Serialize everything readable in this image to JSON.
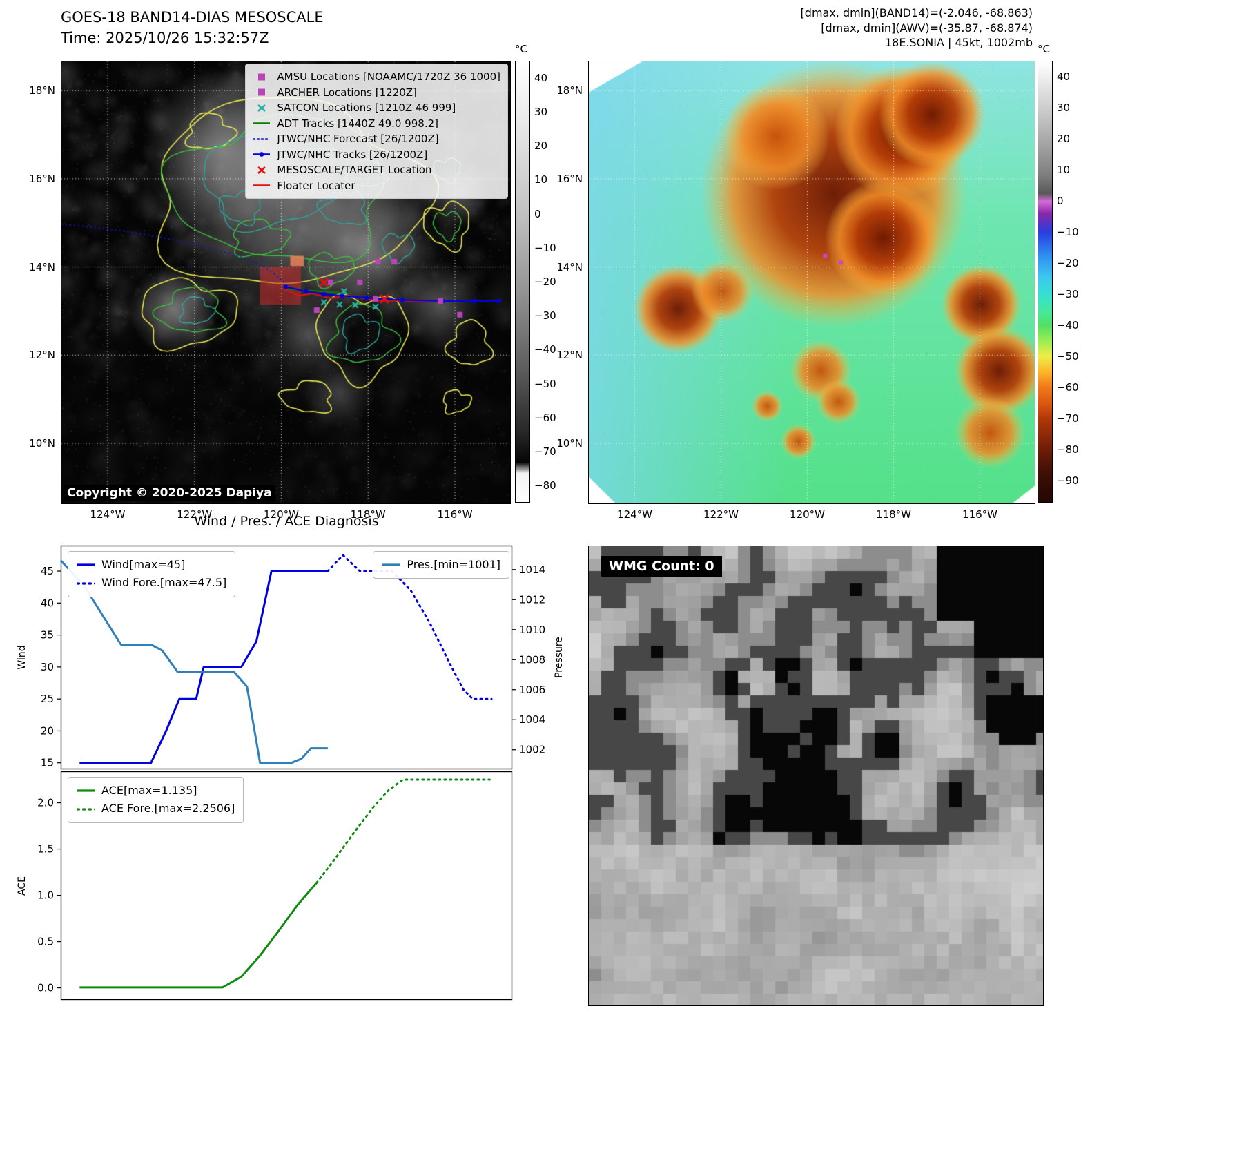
{
  "band14": {
    "title1": "GOES-18 BAND14-DIAS MESOSCALE",
    "title2": "Time: 2025/10/26 15:32:57Z",
    "copyright": "Copyright © 2020-2025 Dapiya",
    "unit": "°C",
    "x_ticks": [
      "124°W",
      "122°W",
      "120°W",
      "118°W",
      "116°W"
    ],
    "y_ticks": [
      "18°N",
      "16°N",
      "14°N",
      "12°N",
      "10°N"
    ],
    "colorbar_ticks": [
      40,
      30,
      20,
      10,
      0,
      -10,
      -20,
      -30,
      -40,
      -50,
      -60,
      -70,
      -80
    ],
    "legend": [
      {
        "label": "AMSU Locations [NOAAMC/1720Z 36 1000]",
        "marker": "square",
        "color": "#bb44bb"
      },
      {
        "label": "ARCHER Locations [1220Z]",
        "marker": "square",
        "color": "#bb44bb"
      },
      {
        "label": "SATCON Locations [1210Z 46 999]",
        "marker": "x",
        "color": "#26b3a7"
      },
      {
        "label": "ADT Tracks [1440Z 49.0 998.2]",
        "marker": "line",
        "color": "#0a7d0a"
      },
      {
        "label": "JTWC/NHC Forecast [26/1200Z]",
        "marker": "dotted",
        "color": "#1515c8"
      },
      {
        "label": "JTWC/NHC Tracks [26/1200Z]",
        "marker": "linedot",
        "color": "#0000e0"
      },
      {
        "label": "MESOSCALE/TARGET Location",
        "marker": "x",
        "color": "#e51010"
      },
      {
        "label": "Floater Locater",
        "marker": "line",
        "color": "#e51010"
      }
    ]
  },
  "awv": {
    "hdr1": "[dmax, dmin](BAND14)=(-2.046, -68.863)",
    "hdr2": "[dmax, dmin](AWV)=(-35.87, -68.874)",
    "hdr3": "18E.SONIA | 45kt, 1002mb",
    "unit": "°C",
    "x_ticks": [
      "124°W",
      "122°W",
      "120°W",
      "118°W",
      "116°W"
    ],
    "y_ticks": [
      "18°N",
      "16°N",
      "14°N",
      "12°N",
      "10°N"
    ],
    "colorbar_ticks": [
      40,
      30,
      20,
      10,
      0,
      -10,
      -20,
      -30,
      -40,
      -50,
      -60,
      -70,
      -80,
      -90
    ]
  },
  "wmg": {
    "label": "WMG Count: 0"
  },
  "chart_data": [
    {
      "type": "line",
      "title": "Wind / Pres. / ACE Diagnosis",
      "xlabel": "",
      "ylabel_left": "Wind",
      "ylabel_right": "Pressure",
      "xlim": [
        0,
        24
      ],
      "ylim_left": [
        14,
        49
      ],
      "ylim_right": [
        1000.7,
        1015.6
      ],
      "yticks_left": [
        15,
        20,
        25,
        30,
        35,
        40,
        45
      ],
      "yticks_right": [
        1002,
        1004,
        1006,
        1008,
        1010,
        1012,
        1014
      ],
      "grid": false,
      "legend_topleft": [
        "Wind[max=45]",
        "Wind Fore.[max=47.5]"
      ],
      "legend_topright": [
        "Pres.[min=1001]"
      ],
      "series": [
        {
          "name": "Wind[max=45]",
          "axis": "left",
          "style": "solid",
          "color": "#0000e0",
          "points": [
            [
              1,
              15
            ],
            [
              4.8,
              15
            ],
            [
              5.6,
              20
            ],
            [
              6.3,
              25
            ],
            [
              7.2,
              25
            ],
            [
              7.6,
              30
            ],
            [
              9.6,
              30
            ],
            [
              10.4,
              34
            ],
            [
              11.2,
              45
            ],
            [
              14.2,
              45
            ]
          ]
        },
        {
          "name": "Wind Fore.[max=47.5]",
          "axis": "left",
          "style": "dotted",
          "color": "#0000e0",
          "points": [
            [
              14.2,
              45
            ],
            [
              15.0,
              47.5
            ],
            [
              15.9,
              45
            ],
            [
              17.6,
              45
            ],
            [
              18.6,
              42
            ],
            [
              19.6,
              37
            ],
            [
              20.6,
              31
            ],
            [
              21.4,
              26.5
            ],
            [
              21.9,
              25
            ],
            [
              22.9,
              25
            ]
          ]
        },
        {
          "name": "Pres.[min=1001]",
          "axis": "right",
          "style": "solid",
          "color": "#2e7fba",
          "points": [
            [
              0,
              1014.6
            ],
            [
              1.2,
              1013
            ],
            [
              3.2,
              1009
            ],
            [
              4.8,
              1009
            ],
            [
              5.4,
              1008.6
            ],
            [
              6.2,
              1007.2
            ],
            [
              9.2,
              1007.2
            ],
            [
              9.9,
              1006.2
            ],
            [
              10.6,
              1001.1
            ],
            [
              12.2,
              1001.1
            ],
            [
              12.8,
              1001.4
            ],
            [
              13.3,
              1002.1
            ],
            [
              14.2,
              1002.1
            ]
          ]
        }
      ]
    },
    {
      "type": "line",
      "title": "",
      "xlabel": "",
      "ylabel_left": "ACE",
      "xlim": [
        0,
        24
      ],
      "ylim_left": [
        -0.13,
        2.34
      ],
      "yticks_left": [
        0,
        0.5,
        1,
        1.5,
        2
      ],
      "yticks_decimals": 1,
      "grid": false,
      "legend_topleft": [
        "ACE[max=1.135]",
        "ACE Fore.[max=2.2506]"
      ],
      "legend_topright": [],
      "series": [
        {
          "name": "ACE[max=1.135]",
          "axis": "left",
          "style": "solid",
          "color": "#0f8c0f",
          "points": [
            [
              1,
              0.005
            ],
            [
              8.6,
              0.005
            ],
            [
              9.6,
              0.12
            ],
            [
              10.6,
              0.35
            ],
            [
              11.6,
              0.62
            ],
            [
              12.6,
              0.9
            ],
            [
              13.6,
              1.135
            ]
          ]
        },
        {
          "name": "ACE Fore.[max=2.2506]",
          "axis": "left",
          "style": "dotted",
          "color": "#0f8c0f",
          "points": [
            [
              13.6,
              1.135
            ],
            [
              14.6,
              1.4
            ],
            [
              15.6,
              1.68
            ],
            [
              16.6,
              1.95
            ],
            [
              17.4,
              2.13
            ],
            [
              18.2,
              2.2506
            ],
            [
              22.8,
              2.2506
            ]
          ]
        }
      ]
    }
  ]
}
